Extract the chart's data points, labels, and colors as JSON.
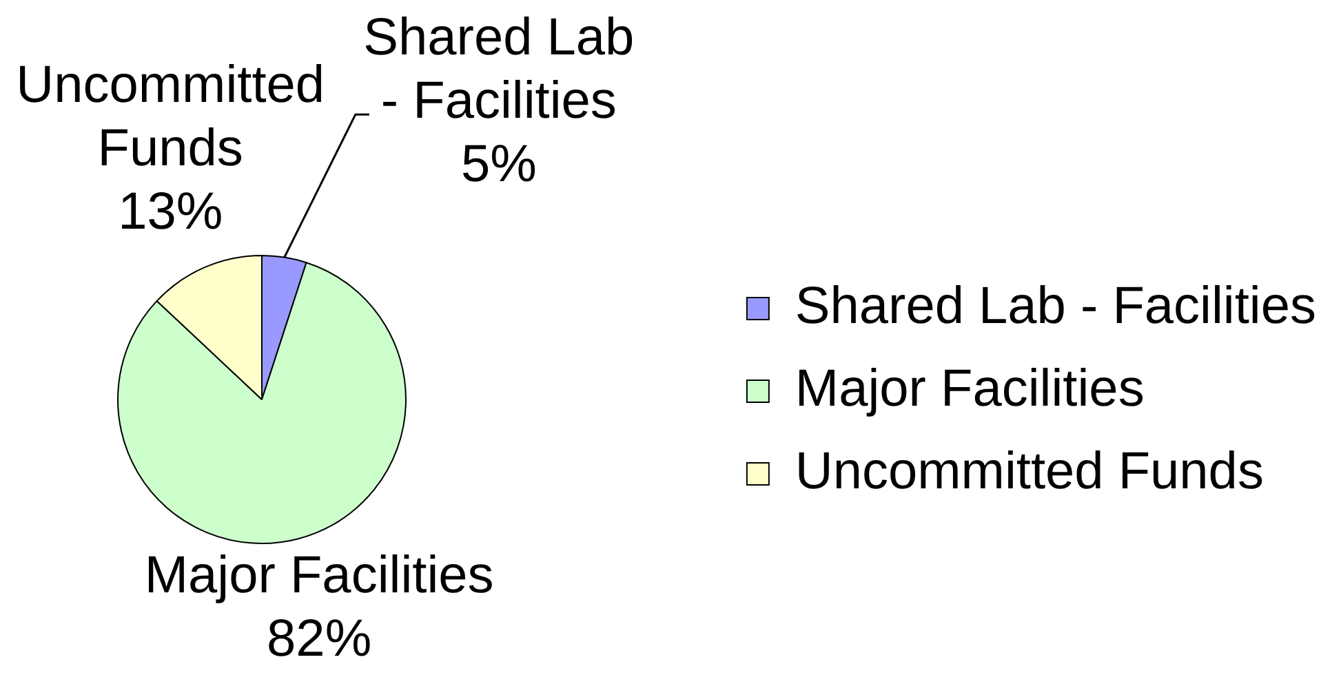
{
  "chart_data": {
    "type": "pie",
    "categories": [
      "Shared Lab - Facilities",
      "Major Facilities",
      "Uncommitted Funds"
    ],
    "values": [
      5,
      82,
      13
    ],
    "value_labels": [
      "5%",
      "82%",
      "13%"
    ],
    "colors": [
      "#9999ff",
      "#ccffcc",
      "#ffffcc"
    ],
    "legend": "right"
  }
}
